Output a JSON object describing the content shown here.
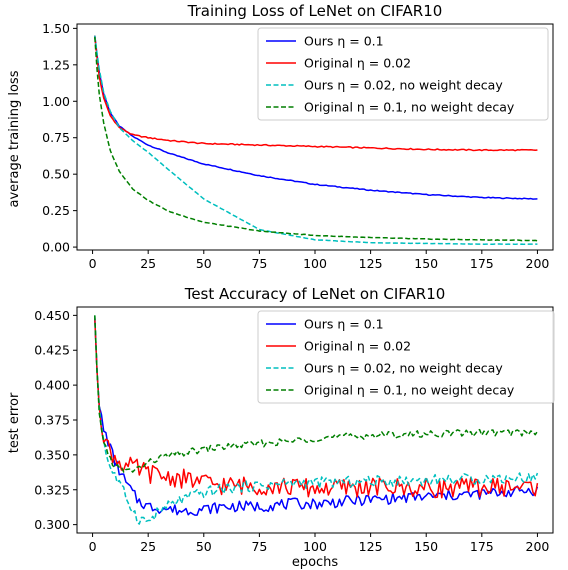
{
  "chart_data": [
    {
      "type": "line",
      "title": "Training Loss of LeNet on CIFAR10",
      "xlabel": "",
      "ylabel": "average training loss",
      "xlim": [
        -7,
        207
      ],
      "ylim": [
        -0.02,
        1.53
      ],
      "xticks": [
        0,
        25,
        50,
        75,
        100,
        125,
        150,
        175,
        200
      ],
      "yticks": [
        0.0,
        0.25,
        0.5,
        0.75,
        1.0,
        1.25,
        1.5
      ],
      "ytick_labels": [
        "0.00",
        "0.25",
        "0.50",
        "0.75",
        "1.00",
        "1.25",
        "1.50"
      ],
      "grid": false,
      "legend": "top-right",
      "x": [
        1,
        2,
        3,
        5,
        8,
        12,
        18,
        25,
        35,
        50,
        75,
        100,
        125,
        150,
        175,
        200
      ],
      "series": [
        {
          "name": "Ours η = 0.1",
          "color": "#0000ff",
          "style": "solid",
          "values": [
            1.45,
            1.32,
            1.2,
            1.05,
            0.92,
            0.83,
            0.76,
            0.7,
            0.64,
            0.57,
            0.49,
            0.43,
            0.39,
            0.36,
            0.34,
            0.33
          ]
        },
        {
          "name": "Original η = 0.02",
          "color": "#ff0000",
          "style": "solid",
          "values": [
            1.45,
            1.3,
            1.17,
            1.02,
            0.9,
            0.82,
            0.77,
            0.75,
            0.73,
            0.71,
            0.7,
            0.69,
            0.68,
            0.67,
            0.665,
            0.665
          ]
        },
        {
          "name": "Ours η = 0.02, no weight decay",
          "color": "#00bfbf",
          "style": "dashed",
          "values": [
            1.45,
            1.33,
            1.22,
            1.06,
            0.93,
            0.82,
            0.73,
            0.65,
            0.52,
            0.33,
            0.12,
            0.05,
            0.03,
            0.025,
            0.02,
            0.02
          ]
        },
        {
          "name": "Original η = 0.1, no weight decay",
          "color": "#007f00",
          "style": "dashed",
          "values": [
            1.44,
            1.22,
            1.05,
            0.85,
            0.66,
            0.52,
            0.4,
            0.32,
            0.24,
            0.17,
            0.11,
            0.08,
            0.065,
            0.055,
            0.05,
            0.045
          ]
        }
      ]
    },
    {
      "type": "line",
      "title": "Test Accuracy of LeNet on CIFAR10",
      "xlabel": "epochs",
      "ylabel": "test error",
      "xlim": [
        -7,
        207
      ],
      "ylim": [
        0.294,
        0.456
      ],
      "xticks": [
        0,
        25,
        50,
        75,
        100,
        125,
        150,
        175,
        200
      ],
      "yticks": [
        0.3,
        0.325,
        0.35,
        0.375,
        0.4,
        0.425,
        0.45
      ],
      "ytick_labels": [
        "0.300",
        "0.325",
        "0.350",
        "0.375",
        "0.400",
        "0.425",
        "0.450"
      ],
      "grid": false,
      "legend": "top-right",
      "x": [
        1,
        2,
        3,
        5,
        7,
        10,
        15,
        20,
        25,
        30,
        40,
        50,
        60,
        75,
        90,
        100,
        125,
        150,
        175,
        200
      ],
      "series": [
        {
          "name": "Ours η = 0.1",
          "color": "#0000ff",
          "style": "solid",
          "values": [
            0.448,
            0.41,
            0.385,
            0.368,
            0.36,
            0.345,
            0.33,
            0.318,
            0.313,
            0.312,
            0.31,
            0.311,
            0.313,
            0.313,
            0.315,
            0.315,
            0.318,
            0.32,
            0.322,
            0.325
          ]
        },
        {
          "name": "Original η = 0.02",
          "color": "#ff0000",
          "style": "solid",
          "values": [
            0.448,
            0.41,
            0.385,
            0.365,
            0.355,
            0.348,
            0.342,
            0.34,
            0.337,
            0.335,
            0.333,
            0.33,
            0.328,
            0.328,
            0.327,
            0.326,
            0.327,
            0.326,
            0.327,
            0.327
          ]
        },
        {
          "name": "Ours η = 0.02, no weight decay",
          "color": "#00bfbf",
          "style": "dashed",
          "values": [
            0.45,
            0.41,
            0.385,
            0.36,
            0.345,
            0.335,
            0.32,
            0.305,
            0.302,
            0.31,
            0.318,
            0.323,
            0.326,
            0.328,
            0.33,
            0.33,
            0.331,
            0.332,
            0.333,
            0.334
          ]
        },
        {
          "name": "Original η = 0.1, no weight decay",
          "color": "#007f00",
          "style": "dashed",
          "values": [
            0.45,
            0.41,
            0.38,
            0.36,
            0.35,
            0.342,
            0.338,
            0.34,
            0.344,
            0.348,
            0.351,
            0.354,
            0.356,
            0.358,
            0.36,
            0.362,
            0.364,
            0.365,
            0.366,
            0.366
          ]
        }
      ]
    }
  ]
}
